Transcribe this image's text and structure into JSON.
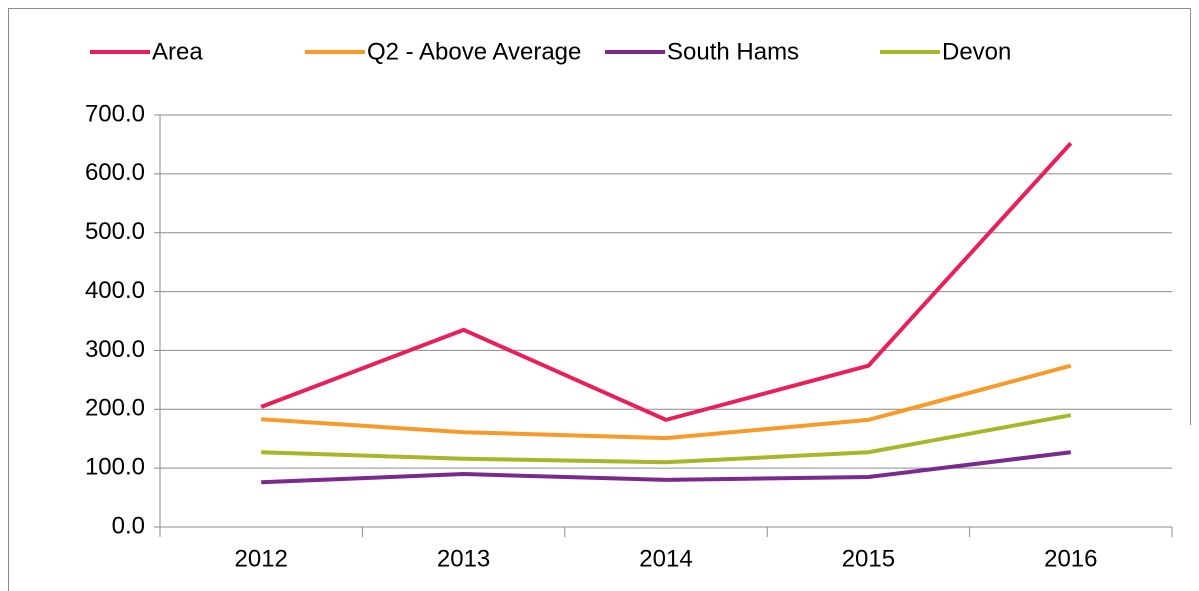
{
  "chart_data": {
    "type": "line",
    "categories": [
      "2012",
      "2013",
      "2014",
      "2015",
      "2016"
    ],
    "series": [
      {
        "name": "Area",
        "color": "#e8205a",
        "values": [
          204,
          335,
          182,
          274,
          652
        ]
      },
      {
        "name": "Q2 - Above Average",
        "color": "#f79a2a",
        "values": [
          183,
          161,
          151,
          182,
          274
        ]
      },
      {
        "name": "South Hams",
        "color": "#7a2a8c",
        "values": [
          76,
          90,
          80,
          85,
          127
        ]
      },
      {
        "name": "Devon",
        "color": "#a6b82a",
        "values": [
          127,
          116,
          110,
          127,
          190
        ]
      }
    ],
    "ylim": [
      0,
      700
    ],
    "yticks": [
      {
        "value": 0,
        "label": "0.0"
      },
      {
        "value": 100,
        "label": "100.0"
      },
      {
        "value": 200,
        "label": "200.0"
      },
      {
        "value": 300,
        "label": "300.0"
      },
      {
        "value": 400,
        "label": "400.0"
      },
      {
        "value": 500,
        "label": "500.0"
      },
      {
        "value": 600,
        "label": "600.0"
      },
      {
        "value": 700,
        "label": "700.0"
      }
    ],
    "grid": true,
    "legend": "top"
  }
}
